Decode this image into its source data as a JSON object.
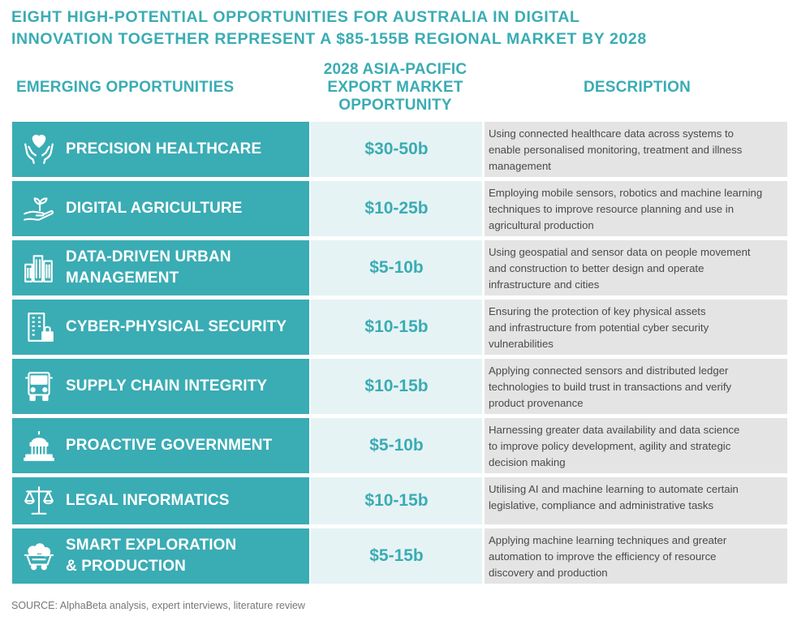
{
  "title": {
    "line1": "EIGHT HIGH-POTENTIAL OPPORTUNITIES FOR AUSTRALIA IN DIGITAL",
    "line2": "INNOVATION TOGETHER REPRESENT A $85-155B REGIONAL MARKET BY 2028"
  },
  "headers": {
    "col1": "EMERGING OPPORTUNITIES",
    "col2_line1": "2028 ASIA-PACIFIC",
    "col2_line2": "EXPORT MARKET",
    "col2_line3": "OPPORTUNITY",
    "col3": "DESCRIPTION"
  },
  "rows": [
    {
      "icon": "hands-heart-icon",
      "name_line1": "PRECISION HEALTHCARE",
      "name_line2": "",
      "value": "$30-50b",
      "desc_line1": "Using connected healthcare data across systems to",
      "desc_line2": "enable personalised monitoring, treatment and illness",
      "desc_line3": "management"
    },
    {
      "icon": "hand-sprout-icon",
      "name_line1": "DIGITAL AGRICULTURE",
      "name_line2": "",
      "value": "$10-25b",
      "desc_line1": "Employing mobile sensors, robotics and machine learning",
      "desc_line2": "techniques to improve resource planning and use in",
      "desc_line3": "agricultural production"
    },
    {
      "icon": "city-buildings-icon",
      "name_line1": "DATA-DRIVEN URBAN",
      "name_line2": "MANAGEMENT",
      "value": "$5-10b",
      "desc_line1": "Using geospatial and sensor data on people movement",
      "desc_line2": "and construction to better design and operate",
      "desc_line3": "infrastructure and cities"
    },
    {
      "icon": "building-lock-icon",
      "name_line1": "CYBER-PHYSICAL SECURITY",
      "name_line2": "",
      "value": "$10-15b",
      "desc_line1": "Ensuring the protection of key physical assets",
      "desc_line2": "and infrastructure from potential cyber security",
      "desc_line3": "vulnerabilities"
    },
    {
      "icon": "truck-icon",
      "name_line1": "SUPPLY CHAIN INTEGRITY",
      "name_line2": "",
      "value": "$10-15b",
      "desc_line1": "Applying connected sensors and distributed ledger",
      "desc_line2": "technologies to build trust in transactions and verify",
      "desc_line3": "product provenance"
    },
    {
      "icon": "capitol-building-icon",
      "name_line1": "PROACTIVE GOVERNMENT",
      "name_line2": "",
      "value": "$5-10b",
      "desc_line1": "Harnessing greater data availability and data science",
      "desc_line2": "to improve policy development, agility and strategic",
      "desc_line3": "decision making"
    },
    {
      "icon": "scales-icon",
      "name_line1": "LEGAL INFORMATICS",
      "name_line2": "",
      "value": "$10-15b",
      "desc_line1": "Utilising AI and machine learning to automate certain",
      "desc_line2": "legislative, compliance and administrative tasks",
      "desc_line3": ""
    },
    {
      "icon": "mine-cart-icon",
      "name_line1": "SMART EXPLORATION",
      "name_line2": "& PRODUCTION",
      "value": "$5-15b",
      "desc_line1": "Applying machine learning techniques and greater",
      "desc_line2": "automation to improve the efficiency of resource",
      "desc_line3": "discovery and production"
    }
  ],
  "source": "SOURCE: AlphaBeta analysis, expert interviews, literature review",
  "colors": {
    "accent": "#3aacb4",
    "value_bg": "#e6f3f4",
    "desc_bg": "#e4e4e4"
  }
}
